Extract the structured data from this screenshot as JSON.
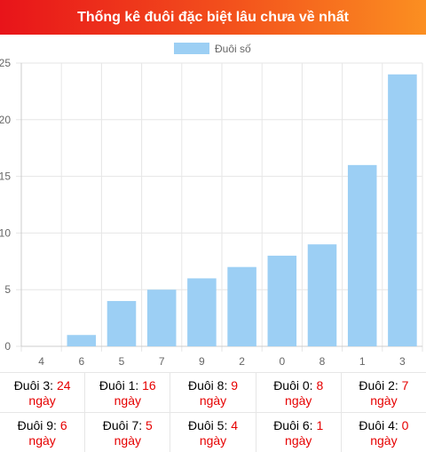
{
  "header": {
    "title": "Thống kê đuôi đặc biệt lâu chưa về nhất"
  },
  "colors": {
    "bar": "#9ccff4",
    "header_start": "#e8141a",
    "header_end": "#fb8f21",
    "highlight": "#e60000",
    "grid": "#e6e6e6"
  },
  "chart_data": {
    "type": "bar",
    "categories": [
      "4",
      "6",
      "5",
      "7",
      "9",
      "2",
      "0",
      "8",
      "1",
      "3"
    ],
    "series": [
      {
        "name": "Đuôi số",
        "values": [
          0,
          1,
          4,
          5,
          6,
          7,
          8,
          9,
          16,
          24
        ]
      }
    ],
    "ylim": [
      0,
      25
    ],
    "yticks": [
      0,
      5,
      10,
      15,
      20,
      25
    ],
    "legend": "top-center",
    "grid": true
  },
  "stats": {
    "rows": [
      [
        {
          "label": "Đuôi 3:",
          "value": "24",
          "unit": "ngày"
        },
        {
          "label": "Đuôi 1:",
          "value": "16",
          "unit": "ngày"
        },
        {
          "label": "Đuôi 8:",
          "value": "9",
          "unit": "ngày"
        },
        {
          "label": "Đuôi 0:",
          "value": "8",
          "unit": "ngày"
        },
        {
          "label": "Đuôi 2:",
          "value": "7",
          "unit": "ngày"
        }
      ],
      [
        {
          "label": "Đuôi 9:",
          "value": "6",
          "unit": "ngày"
        },
        {
          "label": "Đuôi 7:",
          "value": "5",
          "unit": "ngày"
        },
        {
          "label": "Đuôi 5:",
          "value": "4",
          "unit": "ngày"
        },
        {
          "label": "Đuôi 6:",
          "value": "1",
          "unit": "ngày"
        },
        {
          "label": "Đuôi 4:",
          "value": "0",
          "unit": "ngày"
        }
      ]
    ]
  }
}
